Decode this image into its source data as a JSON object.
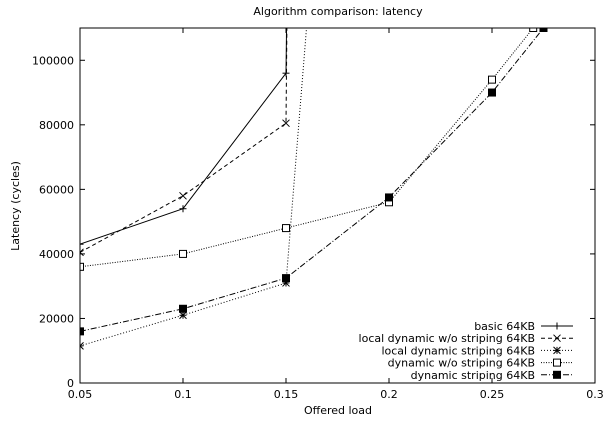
{
  "chart_data": {
    "type": "line",
    "title": "Algorithm comparison: latency",
    "xlabel": "Offered load",
    "ylabel": "Latency (cycles)",
    "xlim": [
      0.05,
      0.3
    ],
    "ylim": [
      0,
      110000
    ],
    "xticks": [
      0.05,
      0.1,
      0.15,
      0.2,
      0.25,
      0.3
    ],
    "xtick_labels": [
      "0.05",
      "0.1",
      "0.15",
      "0.2",
      "0.25",
      "0.3"
    ],
    "yticks": [
      0,
      20000,
      40000,
      60000,
      80000,
      100000
    ],
    "ytick_labels": [
      "0",
      "20000",
      "40000",
      "60000",
      "80000",
      "100000"
    ],
    "grid": false,
    "legend_position": "bottom-right",
    "series": [
      {
        "name": "basic 64KB",
        "marker": "plus",
        "dash": "solid",
        "x": [
          0.05,
          0.1,
          0.15,
          0.151
        ],
        "y": [
          43000,
          54000,
          96000,
          150000
        ]
      },
      {
        "name": "local dynamic w/o striping 64KB",
        "marker": "cross",
        "dash": "dashed",
        "x": [
          0.05,
          0.1,
          0.15,
          0.151
        ],
        "y": [
          40500,
          58000,
          80500,
          150000
        ]
      },
      {
        "name": "local dynamic striping 64KB",
        "marker": "star",
        "dash": "dotted",
        "x": [
          0.05,
          0.1,
          0.15,
          0.165
        ],
        "y": [
          11500,
          21000,
          31000,
          150000
        ]
      },
      {
        "name": "dynamic w/o striping 64KB",
        "marker": "open-square",
        "dash": "dense-dotted",
        "x": [
          0.05,
          0.1,
          0.15,
          0.2,
          0.25,
          0.27
        ],
        "y": [
          36000,
          40000,
          48000,
          56000,
          94000,
          110000
        ]
      },
      {
        "name": "dynamic striping 64KB",
        "marker": "filled-square",
        "dash": "dash-dot",
        "x": [
          0.05,
          0.1,
          0.15,
          0.2,
          0.25,
          0.275
        ],
        "y": [
          16000,
          23000,
          32500,
          57500,
          90000,
          110000
        ]
      }
    ]
  }
}
